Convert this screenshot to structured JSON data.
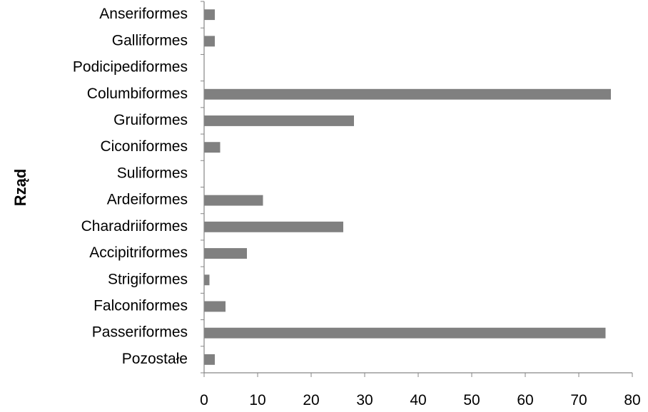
{
  "chart_data": {
    "type": "bar",
    "orientation": "horizontal",
    "categories": [
      "Anseriformes",
      "Galliformes",
      "Podicipediformes",
      "Columbiformes",
      "Gruiformes",
      "Ciconiformes",
      "Suliformes",
      "Ardeiformes",
      "Charadriiformes",
      "Accipitriformes",
      "Strigiformes",
      "Falconiformes",
      "Passeriformes",
      "Pozostałe"
    ],
    "values": [
      2,
      2,
      0,
      76,
      28,
      3,
      0,
      11,
      26,
      8,
      1,
      4,
      75,
      2
    ],
    "ylabel": "Rząd",
    "xlim": [
      0,
      80
    ],
    "xticks": [
      0,
      10,
      20,
      30,
      40,
      50,
      60,
      70,
      80
    ],
    "grid": false,
    "legend": "none",
    "bar_color": "#808080",
    "axis_color": "#868686"
  }
}
